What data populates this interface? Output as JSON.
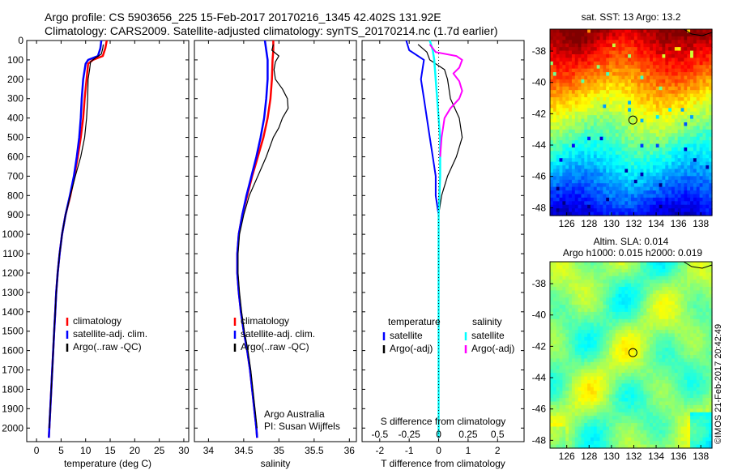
{
  "header": {
    "line1": "Argo profile: CS 5903656_225 15-Feb-2017 20170216_1345 42.402S 131.92E",
    "line2": "Climatology: CARS2009. Satellite-adjusted climatology: synTS_20170214.nc (1.7d earlier)"
  },
  "colors": {
    "climatology": "#ff0000",
    "satellite": "#0000ff",
    "argo": "#000000",
    "salinity_satellite": "#00ffff",
    "salinity_argo": "#ff00ff"
  },
  "chart_data": [
    {
      "id": "temperature",
      "type": "line",
      "xlabel": "temperature (deg C)",
      "xlim": [
        -2,
        31
      ],
      "xticks": [
        0,
        5,
        10,
        15,
        20,
        25,
        30
      ],
      "ylim": [
        2070,
        0
      ],
      "yticks": [
        0,
        100,
        200,
        300,
        400,
        500,
        600,
        700,
        800,
        900,
        1000,
        1100,
        1200,
        1300,
        1400,
        1500,
        1600,
        1700,
        1800,
        1900,
        2000
      ],
      "legend": [
        "climatology",
        "satellite-adj. clim.",
        "Argo(..raw -QC)"
      ],
      "series": [
        {
          "name": "climatology",
          "color": "#ff0000",
          "width": 2.5,
          "points": [
            [
              14.3,
              0
            ],
            [
              14.0,
              40
            ],
            [
              13.5,
              80
            ],
            [
              11.5,
              100
            ],
            [
              10.5,
              120
            ],
            [
              10.2,
              200
            ],
            [
              9.8,
              300
            ],
            [
              9.5,
              400
            ],
            [
              9.0,
              500
            ],
            [
              8.4,
              600
            ],
            [
              7.7,
              700
            ],
            [
              6.9,
              800
            ],
            [
              5.9,
              900
            ],
            [
              5.2,
              1000
            ],
            [
              4.7,
              1100
            ],
            [
              4.3,
              1200
            ],
            [
              4.0,
              1300
            ],
            [
              3.8,
              1400
            ],
            [
              3.6,
              1500
            ],
            [
              3.4,
              1600
            ],
            [
              3.2,
              1700
            ],
            [
              3.0,
              1800
            ],
            [
              2.8,
              1900
            ],
            [
              2.6,
              2000
            ],
            [
              2.5,
              2050
            ]
          ]
        },
        {
          "name": "satellite-adj. clim.",
          "color": "#0000ff",
          "width": 2.5,
          "points": [
            [
              13.2,
              0
            ],
            [
              13.0,
              40
            ],
            [
              12.5,
              80
            ],
            [
              10.5,
              100
            ],
            [
              10.0,
              120
            ],
            [
              9.5,
              200
            ],
            [
              9.2,
              300
            ],
            [
              9.0,
              400
            ],
            [
              8.7,
              500
            ],
            [
              8.2,
              600
            ],
            [
              7.6,
              700
            ],
            [
              6.8,
              800
            ],
            [
              5.9,
              900
            ],
            [
              5.2,
              1000
            ],
            [
              4.7,
              1100
            ],
            [
              4.3,
              1200
            ],
            [
              4.0,
              1300
            ],
            [
              3.8,
              1400
            ],
            [
              3.6,
              1500
            ],
            [
              3.4,
              1600
            ],
            [
              3.2,
              1700
            ],
            [
              3.0,
              1800
            ],
            [
              2.8,
              1900
            ],
            [
              2.6,
              2000
            ],
            [
              2.5,
              2050
            ]
          ]
        },
        {
          "name": "Argo(..raw -QC)",
          "color": "#000000",
          "width": 1.2,
          "points": [
            [
              13.6,
              20
            ],
            [
              13.5,
              40
            ],
            [
              13.2,
              70
            ],
            [
              12.0,
              90
            ],
            [
              11.0,
              110
            ],
            [
              10.8,
              150
            ],
            [
              10.5,
              200
            ],
            [
              10.4,
              300
            ],
            [
              10.2,
              400
            ],
            [
              9.8,
              500
            ],
            [
              9.0,
              600
            ],
            [
              7.9,
              700
            ],
            [
              6.9,
              800
            ],
            [
              5.9,
              900
            ],
            [
              5.2,
              1000
            ],
            [
              4.7,
              1100
            ],
            [
              4.3,
              1200
            ],
            [
              4.0,
              1300
            ],
            [
              3.8,
              1400
            ],
            [
              3.6,
              1500
            ],
            [
              3.4,
              1600
            ],
            [
              3.2,
              1700
            ],
            [
              3.0,
              1800
            ],
            [
              2.8,
              1900
            ],
            [
              2.6,
              2000
            ]
          ]
        }
      ]
    },
    {
      "id": "salinity",
      "type": "line",
      "xlabel": "salinity",
      "xlim": [
        33.8,
        36.1
      ],
      "xticks": [
        34,
        34.5,
        35,
        35.5,
        36
      ],
      "ylim": [
        2070,
        0
      ],
      "legend": [
        "climatology",
        "satellite-adj. clim.",
        "Argo(..raw -QC)"
      ],
      "annotation": [
        "Argo Australia",
        "PI: Susan Wijffels"
      ],
      "series": [
        {
          "name": "climatology",
          "color": "#ff0000",
          "width": 2.5,
          "points": [
            [
              34.92,
              0
            ],
            [
              34.92,
              50
            ],
            [
              34.91,
              100
            ],
            [
              34.9,
              200
            ],
            [
              34.88,
              300
            ],
            [
              34.84,
              400
            ],
            [
              34.78,
              500
            ],
            [
              34.7,
              600
            ],
            [
              34.62,
              700
            ],
            [
              34.55,
              800
            ],
            [
              34.48,
              900
            ],
            [
              34.43,
              1000
            ],
            [
              34.41,
              1100
            ],
            [
              34.41,
              1200
            ],
            [
              34.43,
              1300
            ],
            [
              34.46,
              1400
            ],
            [
              34.5,
              1500
            ],
            [
              34.55,
              1600
            ],
            [
              34.59,
              1700
            ],
            [
              34.62,
              1800
            ],
            [
              34.65,
              1900
            ],
            [
              34.68,
              2000
            ],
            [
              34.69,
              2050
            ]
          ]
        },
        {
          "name": "satellite-adj. clim.",
          "color": "#0000ff",
          "width": 2.5,
          "points": [
            [
              34.8,
              0
            ],
            [
              34.82,
              50
            ],
            [
              34.84,
              100
            ],
            [
              34.84,
              200
            ],
            [
              34.82,
              300
            ],
            [
              34.79,
              400
            ],
            [
              34.74,
              500
            ],
            [
              34.68,
              600
            ],
            [
              34.61,
              700
            ],
            [
              34.54,
              800
            ],
            [
              34.48,
              900
            ],
            [
              34.43,
              1000
            ],
            [
              34.41,
              1100
            ],
            [
              34.41,
              1200
            ],
            [
              34.43,
              1300
            ],
            [
              34.46,
              1400
            ],
            [
              34.5,
              1500
            ],
            [
              34.55,
              1600
            ],
            [
              34.59,
              1700
            ],
            [
              34.62,
              1800
            ],
            [
              34.65,
              1900
            ],
            [
              34.68,
              2000
            ],
            [
              34.69,
              2050
            ]
          ]
        },
        {
          "name": "Argo(..raw -QC)",
          "color": "#000000",
          "width": 1.2,
          "points": [
            [
              34.92,
              20
            ],
            [
              34.9,
              50
            ],
            [
              35.0,
              80
            ],
            [
              34.95,
              110
            ],
            [
              34.93,
              150
            ],
            [
              34.95,
              200
            ],
            [
              35.05,
              250
            ],
            [
              35.12,
              300
            ],
            [
              35.13,
              350
            ],
            [
              35.05,
              400
            ],
            [
              35.0,
              450
            ],
            [
              34.92,
              500
            ],
            [
              34.82,
              600
            ],
            [
              34.7,
              700
            ],
            [
              34.58,
              800
            ],
            [
              34.5,
              900
            ],
            [
              34.44,
              1000
            ],
            [
              34.42,
              1100
            ],
            [
              34.42,
              1200
            ],
            [
              34.44,
              1300
            ],
            [
              34.47,
              1400
            ],
            [
              34.51,
              1500
            ],
            [
              34.56,
              1600
            ],
            [
              34.6,
              1700
            ],
            [
              34.63,
              1800
            ],
            [
              34.66,
              1900
            ],
            [
              34.69,
              2000
            ]
          ]
        }
      ]
    },
    {
      "id": "difference",
      "type": "line",
      "xlabel": "T difference from climatology",
      "xlabel_top": "S difference from climatology",
      "xlim": [
        -2.6,
        2.9
      ],
      "xticks": [
        -2,
        -1,
        0,
        1,
        2
      ],
      "top_ticks": [
        {
          "label": "-0.5",
          "at": -2
        },
        {
          "label": "-0.25",
          "at": -1
        },
        {
          "label": "0",
          "at": 0
        },
        {
          "label": "0.25",
          "at": 1
        },
        {
          "label": "0.5",
          "at": 2
        }
      ],
      "ylim": [
        2070,
        0
      ],
      "legend_groups": [
        {
          "title": "temperature",
          "entries": [
            "satellite",
            "Argo(-adj)"
          ]
        },
        {
          "title": "salinity",
          "entries": [
            "satellite",
            "Argo(-adj)"
          ]
        }
      ],
      "series": [
        {
          "name": "temperature satellite",
          "color": "#0000ff",
          "width": 2,
          "points": [
            [
              -1.1,
              0
            ],
            [
              -1.0,
              50
            ],
            [
              -0.5,
              100
            ],
            [
              -0.6,
              200
            ],
            [
              -0.5,
              300
            ],
            [
              -0.4,
              400
            ],
            [
              -0.3,
              500
            ],
            [
              -0.2,
              600
            ],
            [
              -0.1,
              700
            ],
            [
              -0.1,
              800
            ],
            [
              0,
              900
            ],
            [
              0,
              1000
            ],
            [
              0,
              1200
            ],
            [
              0,
              1400
            ],
            [
              0,
              1600
            ],
            [
              0,
              1800
            ],
            [
              0,
              2000
            ],
            [
              0,
              2050
            ]
          ]
        },
        {
          "name": "temperature Argo(-adj)",
          "color": "#000000",
          "width": 1.2,
          "points": [
            [
              -0.7,
              20
            ],
            [
              -0.4,
              60
            ],
            [
              -0.3,
              100
            ],
            [
              0.2,
              150
            ],
            [
              0.3,
              200
            ],
            [
              0.4,
              300
            ],
            [
              0.7,
              400
            ],
            [
              0.8,
              500
            ],
            [
              0.6,
              600
            ],
            [
              0.3,
              700
            ],
            [
              0.1,
              800
            ],
            [
              0,
              900
            ],
            [
              0,
              1100
            ],
            [
              0,
              1400
            ],
            [
              0,
              1700
            ],
            [
              0,
              2000
            ]
          ]
        },
        {
          "name": "salinity satellite",
          "color": "#00ffff",
          "width": 2.5,
          "points": [
            [
              -0.3,
              0
            ],
            [
              -0.2,
              50
            ],
            [
              -0.15,
              100
            ],
            [
              -0.1,
              200
            ],
            [
              -0.05,
              300
            ],
            [
              0,
              400
            ],
            [
              0.05,
              500
            ],
            [
              0.05,
              700
            ],
            [
              0,
              900
            ],
            [
              0,
              1200
            ],
            [
              0,
              1500
            ],
            [
              0,
              1800
            ],
            [
              0,
              2050
            ]
          ]
        },
        {
          "name": "salinity Argo(-adj)",
          "color": "#ff00ff",
          "width": 2,
          "points": [
            [
              -0.3,
              20
            ],
            [
              -0.1,
              60
            ],
            [
              0.6,
              80
            ],
            [
              0.8,
              100
            ],
            [
              0.7,
              140
            ],
            [
              0.5,
              170
            ],
            [
              0.7,
              210
            ],
            [
              0.8,
              260
            ],
            [
              0.7,
              300
            ],
            [
              0.4,
              350
            ],
            [
              0.2,
              400
            ],
            [
              0.1,
              500
            ],
            [
              0.05,
              600
            ]
          ]
        }
      ]
    },
    {
      "id": "sst_map",
      "type": "heatmap",
      "title": "sat. SST: 13 Argo: 13.2",
      "xlim": [
        124.5,
        139
      ],
      "xticks": [
        126,
        128,
        130,
        132,
        134,
        136,
        138
      ],
      "ylim": [
        -48.5,
        -36.6
      ],
      "yticks": [
        -38,
        -40,
        -42,
        -44,
        -46,
        -48
      ],
      "argo_position": {
        "lon": 131.92,
        "lat": -42.402
      }
    },
    {
      "id": "sla_map",
      "type": "heatmap",
      "title": "Altim. SLA: 0.014",
      "subtitle": "Argo h1000: 0.015 h2000: 0.019",
      "xlim": [
        124.5,
        139
      ],
      "xticks": [
        126,
        128,
        130,
        132,
        134,
        136,
        138
      ],
      "ylim": [
        -48.5,
        -36.6
      ],
      "yticks": [
        -38,
        -40,
        -42,
        -44,
        -46,
        -48
      ],
      "argo_position": {
        "lon": 131.92,
        "lat": -42.402
      }
    }
  ],
  "stamp": "©IMOS 21-Feb-2017 20:42:49"
}
